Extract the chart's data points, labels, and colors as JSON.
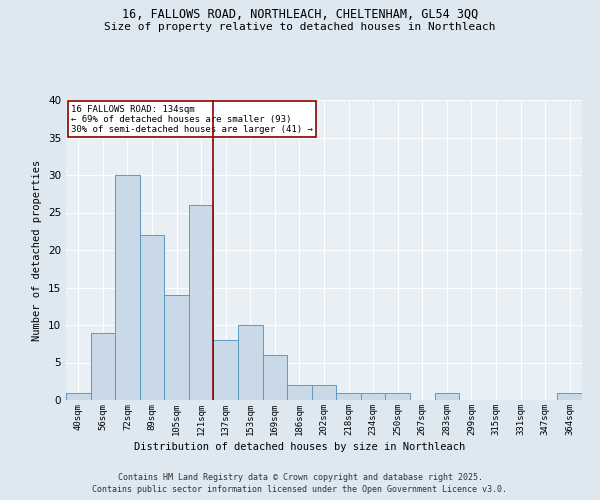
{
  "title_line1": "16, FALLOWS ROAD, NORTHLEACH, CHELTENHAM, GL54 3QQ",
  "title_line2": "Size of property relative to detached houses in Northleach",
  "xlabel": "Distribution of detached houses by size in Northleach",
  "ylabel": "Number of detached properties",
  "bin_labels": [
    "40sqm",
    "56sqm",
    "72sqm",
    "89sqm",
    "105sqm",
    "121sqm",
    "137sqm",
    "153sqm",
    "169sqm",
    "186sqm",
    "202sqm",
    "218sqm",
    "234sqm",
    "250sqm",
    "267sqm",
    "283sqm",
    "299sqm",
    "315sqm",
    "331sqm",
    "347sqm",
    "364sqm"
  ],
  "bar_values": [
    1,
    9,
    30,
    22,
    14,
    26,
    8,
    10,
    6,
    2,
    2,
    1,
    1,
    1,
    0,
    1,
    0,
    0,
    0,
    0,
    1
  ],
  "bar_color": "#c9d9e8",
  "bar_edge_color": "#5b9ac0",
  "red_line_x": 5.5,
  "ylim": [
    0,
    40
  ],
  "yticks": [
    0,
    5,
    10,
    15,
    20,
    25,
    30,
    35,
    40
  ],
  "annotation_line1": "16 FALLOWS ROAD: 134sqm",
  "annotation_line2": "← 69% of detached houses are smaller (93)",
  "annotation_line3": "30% of semi-detached houses are larger (41) →",
  "bg_color": "#dde8f0",
  "plot_bg_color": "#e8eff5",
  "footer_line1": "Contains HM Land Registry data © Crown copyright and database right 2025.",
  "footer_line2": "Contains public sector information licensed under the Open Government Licence v3.0."
}
